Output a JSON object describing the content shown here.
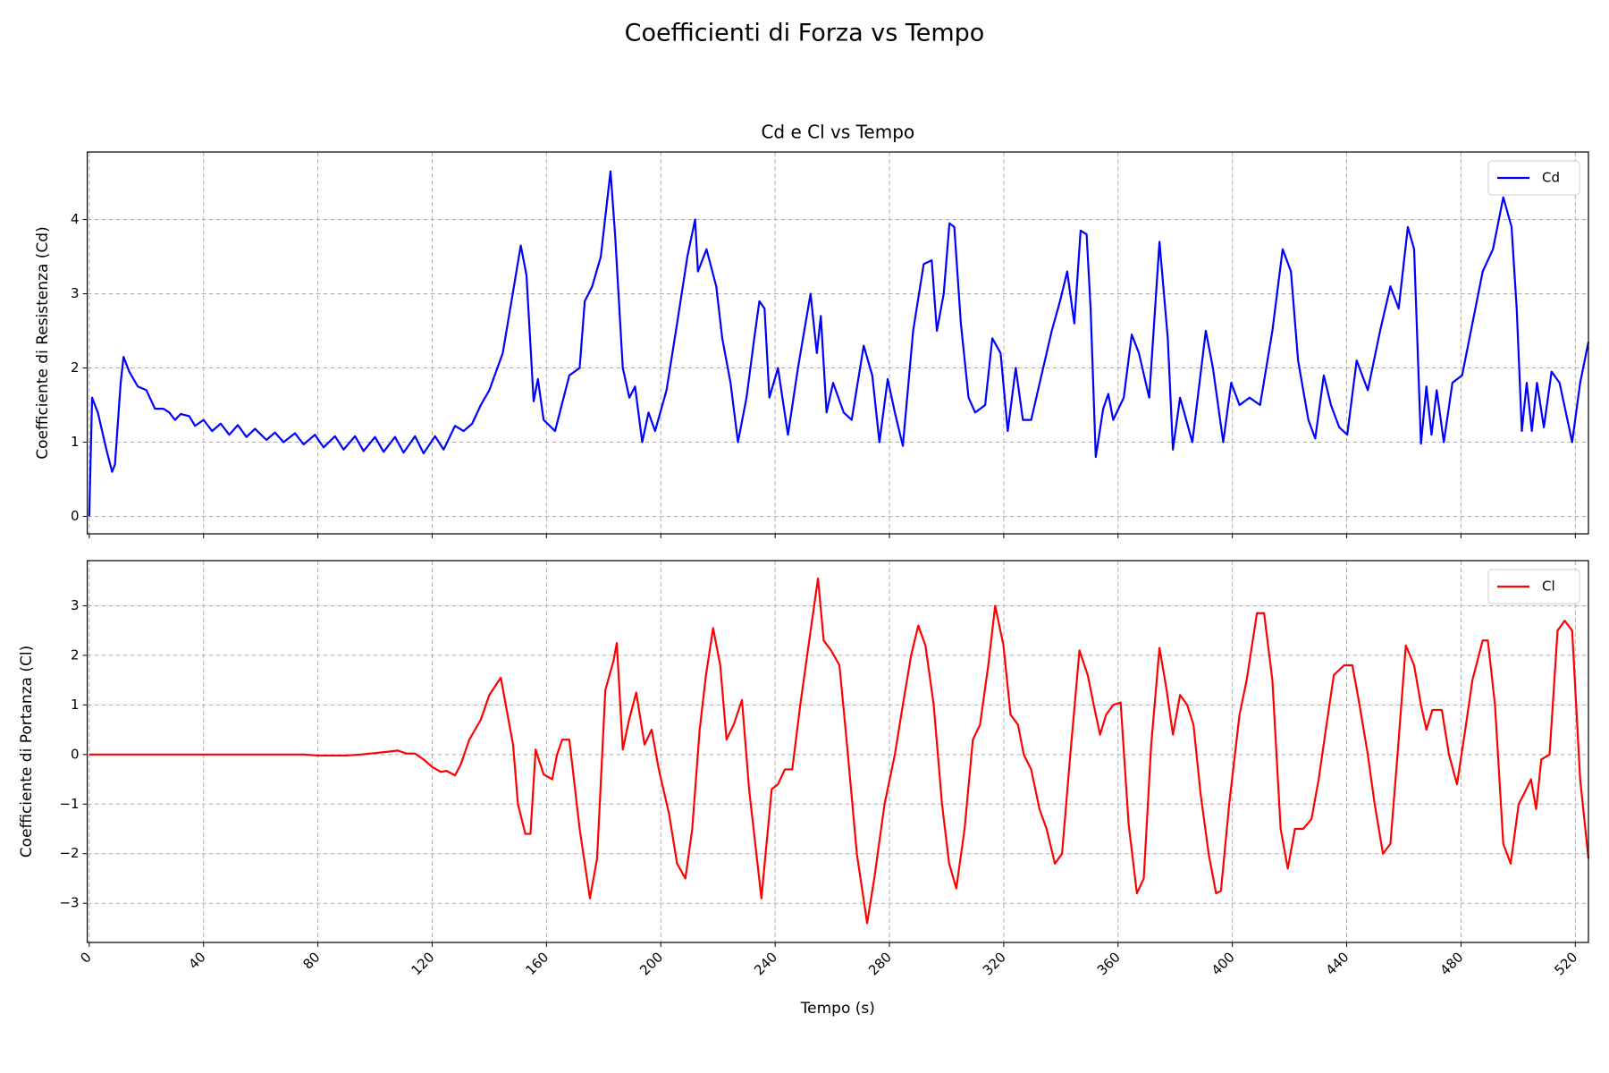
{
  "title": "Coefficienti di Forza vs Tempo",
  "chart_data": [
    {
      "type": "line",
      "title": "Cd e Cl vs Tempo",
      "ylabel": "Coefficiente di Resistenza (Cd)",
      "x": [
        0,
        1,
        3,
        6,
        8,
        9,
        11,
        12,
        14,
        17,
        20,
        23,
        26,
        28,
        30,
        32,
        35,
        37,
        40,
        43,
        46,
        49,
        52,
        55,
        58,
        62,
        65,
        68,
        72,
        75,
        79,
        82,
        86,
        89,
        93,
        96,
        100,
        103,
        107,
        110,
        114,
        117,
        121,
        124,
        128,
        131,
        134,
        137,
        140,
        144.7,
        151,
        153,
        155.5,
        157,
        159,
        163,
        168,
        171.6,
        173.4,
        176,
        179,
        182.4,
        184,
        186.7,
        189,
        191,
        193.5,
        195.7,
        198,
        202,
        205.7,
        209.3,
        212,
        213,
        216,
        219.4,
        221.5,
        224.4,
        227,
        230,
        232.7,
        234.5,
        236.3,
        238,
        241,
        244.5,
        248,
        252.4,
        254.6,
        256,
        258,
        260.3,
        264,
        266.8,
        271,
        274,
        276.5,
        279.4,
        281.9,
        284.7,
        288.3,
        292,
        294.8,
        296.6,
        299,
        301,
        302.7,
        305,
        307.7,
        310,
        313.5,
        316,
        318.9,
        321.4,
        324.2,
        326.7,
        329.6,
        333.2,
        336.8,
        339.7,
        342.2,
        344.7,
        346.9,
        349,
        350.4,
        352.2,
        354.8,
        356.6,
        358.3,
        362,
        364.8,
        367.3,
        370.9,
        374.5,
        377.4,
        379.2,
        381.7,
        383.5,
        386,
        390.7,
        393.2,
        396.8,
        399.6,
        402.5,
        406,
        409.7,
        414,
        417.6,
        420.5,
        423,
        426.6,
        429,
        432,
        434.5,
        437.4,
        440.2,
        443.5,
        447.4,
        451.7,
        455.3,
        458.2,
        461.4,
        463.6,
        466,
        467.9,
        469.7,
        471.5,
        474,
        477,
        480.4,
        484,
        487.6,
        491.2,
        494.8,
        497.7,
        499.5,
        501.3,
        503,
        504.8,
        506.6,
        509,
        511.7,
        514.5,
        518.9,
        521.7,
        524.6
      ],
      "series": [
        {
          "name": "Cd",
          "color": "#0000ff",
          "values": [
            0,
            1.6,
            1.4,
            0.9,
            0.6,
            0.7,
            1.8,
            2.15,
            1.95,
            1.75,
            1.7,
            1.45,
            1.45,
            1.4,
            1.3,
            1.38,
            1.35,
            1.22,
            1.3,
            1.15,
            1.25,
            1.1,
            1.23,
            1.07,
            1.18,
            1.03,
            1.13,
            1.0,
            1.12,
            0.97,
            1.1,
            0.93,
            1.08,
            0.9,
            1.08,
            0.88,
            1.07,
            0.87,
            1.07,
            0.86,
            1.08,
            0.85,
            1.08,
            0.9,
            1.22,
            1.15,
            1.25,
            1.5,
            1.7,
            2.2,
            3.65,
            3.25,
            1.55,
            1.85,
            1.3,
            1.15,
            1.9,
            2.0,
            2.9,
            3.1,
            3.5,
            4.65,
            3.8,
            2.0,
            1.6,
            1.75,
            1.0,
            1.4,
            1.15,
            1.7,
            2.6,
            3.5,
            4.0,
            3.3,
            3.6,
            3.1,
            2.4,
            1.8,
            1.0,
            1.6,
            2.4,
            2.9,
            2.8,
            1.6,
            2.0,
            1.1,
            2.0,
            3.0,
            2.2,
            2.7,
            1.4,
            1.8,
            1.4,
            1.3,
            2.3,
            1.9,
            1.0,
            1.85,
            1.4,
            0.95,
            2.5,
            3.4,
            3.45,
            2.5,
            3.0,
            3.95,
            3.9,
            2.6,
            1.6,
            1.4,
            1.5,
            2.4,
            2.2,
            1.15,
            2.0,
            1.3,
            1.3,
            1.9,
            2.5,
            2.9,
            3.3,
            2.6,
            3.85,
            3.8,
            2.8,
            0.8,
            1.45,
            1.65,
            1.3,
            1.6,
            2.45,
            2.2,
            1.6,
            3.7,
            2.4,
            0.9,
            1.6,
            1.35,
            1.0,
            2.5,
            2.0,
            1.0,
            1.8,
            1.5,
            1.6,
            1.5,
            2.5,
            3.6,
            3.3,
            2.1,
            1.3,
            1.05,
            1.9,
            1.5,
            1.2,
            1.1,
            2.1,
            1.7,
            2.5,
            3.1,
            2.8,
            3.9,
            3.6,
            0.98,
            1.75,
            1.1,
            1.7,
            1.0,
            1.8,
            1.9,
            2.6,
            3.3,
            3.6,
            4.3,
            3.9,
            2.8,
            1.15,
            1.8,
            1.15,
            1.8,
            1.2,
            1.95,
            1.8,
            1.0,
            1.8,
            2.35
          ]
        }
      ],
      "xlim": [
        -0.7,
        524.6
      ],
      "xticks": [
        0,
        40,
        80,
        120,
        160,
        200,
        240,
        280,
        320,
        360,
        400,
        440,
        480,
        520
      ],
      "ylim": [
        -0.235,
        4.91
      ],
      "yticks": [
        0,
        1,
        2,
        3,
        4
      ],
      "grid": true,
      "legend": "upper right"
    },
    {
      "type": "line",
      "xlabel": "Tempo (s)",
      "ylabel": "Coefficiente di Portanza (Cl)",
      "x": [
        0,
        75,
        80,
        90,
        95,
        100,
        105,
        108,
        111,
        114,
        117,
        120,
        123,
        125,
        128,
        130,
        133,
        137,
        140,
        144,
        148.3,
        150,
        152.6,
        154.4,
        156.2,
        159,
        162,
        163.7,
        165.5,
        168,
        171.6,
        175.2,
        177.7,
        180.6,
        183.5,
        184.6,
        186.7,
        188.9,
        191.4,
        194.3,
        196.8,
        199.3,
        202.9,
        205.7,
        208.6,
        211,
        213.6,
        215.8,
        218.3,
        220.8,
        223,
        225.5,
        228.4,
        230.9,
        235.2,
        238.8,
        241,
        243.4,
        246,
        248.8,
        251.7,
        255,
        257,
        259.6,
        262.5,
        265,
        268.6,
        272.2,
        274.7,
        278.3,
        281.9,
        284.7,
        287.6,
        290.1,
        292.6,
        295.5,
        298.4,
        300.9,
        303.4,
        306.3,
        309.2,
        311.7,
        314.6,
        317,
        319.9,
        322.4,
        325,
        327,
        329.6,
        332.5,
        335,
        337.9,
        340.4,
        343.3,
        346.5,
        349.4,
        351.5,
        353.7,
        355.8,
        358.3,
        360.9,
        363.7,
        366.6,
        369,
        371.6,
        374.5,
        377,
        379.2,
        381.7,
        384.2,
        386.4,
        388.9,
        391.7,
        394.3,
        396,
        398.9,
        402.5,
        405,
        408.6,
        411.1,
        414,
        416.9,
        419.4,
        421.9,
        424.8,
        427.7,
        430.2,
        432.7,
        435.5,
        439.1,
        442,
        444.5,
        447.4,
        449.8,
        452.7,
        455.3,
        457.8,
        460.7,
        463.6,
        466,
        467.9,
        470,
        473.3,
        475.8,
        478.6,
        481.5,
        484,
        487.6,
        489.4,
        491.9,
        494.8,
        497.4,
        500.2,
        502,
        504.5,
        506.3,
        508.1,
        511,
        513.8,
        516.3,
        518.9,
        521.7,
        524.6
      ],
      "series": [
        {
          "name": "Cl",
          "color": "#ff0000",
          "values": [
            0,
            0,
            -0.02,
            -0.02,
            0,
            0.03,
            0.06,
            0.08,
            0.02,
            0.02,
            -0.1,
            -0.25,
            -0.35,
            -0.33,
            -0.42,
            -0.2,
            0.3,
            0.7,
            1.2,
            1.55,
            0.2,
            -1.0,
            -1.6,
            -1.6,
            0.1,
            -0.4,
            -0.5,
            0,
            0.3,
            0.3,
            -1.5,
            -2.9,
            -2.1,
            1.3,
            1.9,
            2.25,
            0.1,
            0.7,
            1.25,
            0.2,
            0.5,
            -0.3,
            -1.2,
            -2.2,
            -2.5,
            -1.5,
            0.5,
            1.6,
            2.55,
            1.8,
            0.3,
            0.6,
            1.1,
            -0.7,
            -2.9,
            -0.7,
            -0.6,
            -0.3,
            -0.3,
            1.0,
            2.2,
            3.55,
            2.3,
            2.1,
            1.8,
            0.3,
            -2.0,
            -3.4,
            -2.5,
            -1.0,
            0,
            1.0,
            2.0,
            2.6,
            2.2,
            1.0,
            -1.0,
            -2.2,
            -2.7,
            -1.5,
            0.3,
            0.6,
            1.8,
            3.0,
            2.2,
            0.8,
            0.6,
            0,
            -0.3,
            -1.1,
            -1.5,
            -2.2,
            -2.0,
            0,
            2.1,
            1.6,
            1.0,
            0.4,
            0.8,
            1.0,
            1.05,
            -1.4,
            -2.8,
            -2.5,
            0.2,
            2.15,
            1.3,
            0.4,
            1.2,
            1.0,
            0.6,
            -0.8,
            -2.0,
            -2.8,
            -2.75,
            -1.0,
            0.8,
            1.5,
            2.85,
            2.85,
            1.5,
            -1.5,
            -2.3,
            -1.5,
            -1.5,
            -1.3,
            -0.5,
            0.5,
            1.6,
            1.8,
            1.8,
            1.0,
            0,
            -1.0,
            -2.0,
            -1.8,
            0,
            2.2,
            1.8,
            1.0,
            0.5,
            0.9,
            0.9,
            0,
            -0.6,
            0.5,
            1.5,
            2.3,
            2.3,
            1.0,
            -1.8,
            -2.2,
            -1.0,
            -0.8,
            -0.5,
            -1.1,
            -0.1,
            0,
            2.5,
            2.7,
            2.5,
            -0.5,
            -2.1
          ]
        }
      ],
      "xlim": [
        -0.7,
        524.6
      ],
      "xticks": [
        0,
        40,
        80,
        120,
        160,
        200,
        240,
        280,
        320,
        360,
        400,
        440,
        480,
        520
      ],
      "ylim": [
        -3.79,
        3.91
      ],
      "yticks": [
        {
          "value": -3,
          "label": "−3"
        },
        {
          "value": -2,
          "label": "−2"
        },
        {
          "value": -1,
          "label": "−1"
        },
        0,
        1,
        2,
        3
      ],
      "grid": true,
      "legend": "upper right"
    }
  ]
}
